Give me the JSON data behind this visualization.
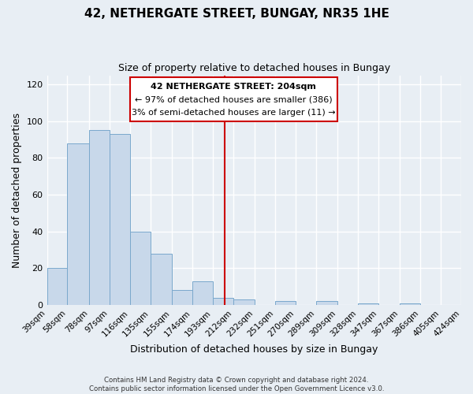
{
  "title": "42, NETHERGATE STREET, BUNGAY, NR35 1HE",
  "subtitle": "Size of property relative to detached houses in Bungay",
  "xlabel": "Distribution of detached houses by size in Bungay",
  "ylabel": "Number of detached properties",
  "bar_values": [
    20,
    88,
    95,
    93,
    40,
    28,
    8,
    13,
    4,
    3,
    0,
    2,
    0,
    2,
    0,
    1,
    0,
    1,
    0,
    0
  ],
  "bin_labels": [
    "39sqm",
    "58sqm",
    "78sqm",
    "97sqm",
    "116sqm",
    "135sqm",
    "155sqm",
    "174sqm",
    "193sqm",
    "212sqm",
    "232sqm",
    "251sqm",
    "270sqm",
    "289sqm",
    "309sqm",
    "328sqm",
    "347sqm",
    "367sqm",
    "386sqm",
    "405sqm",
    "424sqm"
  ],
  "bin_edges": [
    39,
    58,
    78,
    97,
    116,
    135,
    155,
    174,
    193,
    212,
    232,
    251,
    270,
    289,
    309,
    328,
    347,
    367,
    386,
    405,
    424
  ],
  "bar_color": "#c8d8ea",
  "bar_edge_color": "#7aa8cc",
  "vline_x": 204,
  "vline_color": "#cc0000",
  "ylim": [
    0,
    125
  ],
  "yticks": [
    0,
    20,
    40,
    60,
    80,
    100,
    120
  ],
  "annotation_title": "42 NETHERGATE STREET: 204sqm",
  "annotation_line1": "← 97% of detached houses are smaller (386)",
  "annotation_line2": "3% of semi-detached houses are larger (11) →",
  "annotation_box_color": "#cc0000",
  "footer_line1": "Contains HM Land Registry data © Crown copyright and database right 2024.",
  "footer_line2": "Contains public sector information licensed under the Open Government Licence v3.0.",
  "background_color": "#e8eef4",
  "plot_bg_color": "#e8eef4",
  "grid_color": "#ffffff",
  "tick_fontsize": 7.5,
  "ylabel_fontsize": 9,
  "xlabel_fontsize": 9,
  "title_fontsize": 11,
  "subtitle_fontsize": 9
}
